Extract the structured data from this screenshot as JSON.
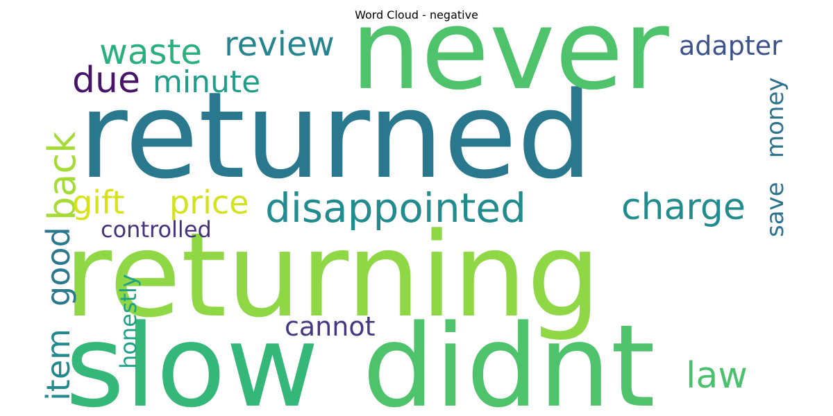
{
  "title": "Word Cloud - negative",
  "words": [
    {
      "text": "returned",
      "color": "#2a788e"
    },
    {
      "text": "returning",
      "color": "#8fd744"
    },
    {
      "text": "never",
      "color": "#4ec36b"
    },
    {
      "text": "slow",
      "color": "#35b779"
    },
    {
      "text": "didnt",
      "color": "#4ec36b"
    },
    {
      "text": "disappointed",
      "color": "#228b8d"
    },
    {
      "text": "charge",
      "color": "#228b8d"
    },
    {
      "text": "waste",
      "color": "#2ab07f"
    },
    {
      "text": "review",
      "color": "#25848e"
    },
    {
      "text": "due",
      "color": "#481467"
    },
    {
      "text": "minute",
      "color": "#1f9e89"
    },
    {
      "text": "adapter",
      "color": "#3b528b"
    },
    {
      "text": "back",
      "color": "#a5db36"
    },
    {
      "text": "gift",
      "color": "#d8e219"
    },
    {
      "text": "price",
      "color": "#d2e21b"
    },
    {
      "text": "controlled",
      "color": "#46327e"
    },
    {
      "text": "money",
      "color": "#2c728e"
    },
    {
      "text": "save",
      "color": "#2c728e"
    },
    {
      "text": "good",
      "color": "#2a788e"
    },
    {
      "text": "item",
      "color": "#23898e"
    },
    {
      "text": "honestly",
      "color": "#1fa187"
    },
    {
      "text": "cannot",
      "color": "#453781"
    },
    {
      "text": "law",
      "color": "#4ac16d"
    }
  ]
}
